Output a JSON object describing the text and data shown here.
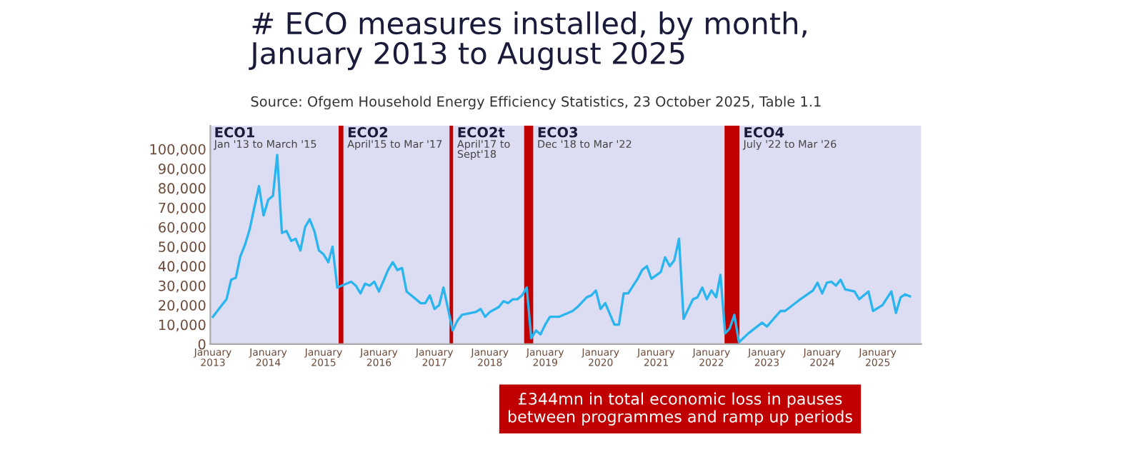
{
  "chart_data": {
    "type": "line",
    "title": "# ECO measures installed, by month,\nJanuary 2013 to August 2025",
    "subtitle": "Source: Ofgem Household Energy Efficiency Statistics, 23 October 2025, Table 1.1",
    "annotations": [
      "£344mn in total economic loss in pauses\nbetween programmes and ramp up periods"
    ],
    "series": [
      {
        "color": "#2bb5ee",
        "x": [
          "2013-01",
          "2013-03",
          "2013-04",
          "2013-05",
          "2013-06",
          "2013-07",
          "2013-08",
          "2013-09",
          "2013-10",
          "2013-11",
          "2013-12",
          "2014-01",
          "2014-02",
          "2014-03",
          "2014-04",
          "2014-05",
          "2014-06",
          "2014-07",
          "2014-08",
          "2014-09",
          "2014-10",
          "2014-11",
          "2014-12",
          "2015-01",
          "2015-02",
          "2015-03",
          "2015-04",
          "2015-05",
          "2015-07",
          "2015-08",
          "2015-09",
          "2015-10",
          "2015-11",
          "2015-12",
          "2016-01",
          "2016-03",
          "2016-04",
          "2016-05",
          "2016-06",
          "2016-07",
          "2016-09",
          "2016-10",
          "2016-11",
          "2016-12",
          "2017-01",
          "2017-02",
          "2017-03",
          "2017-05",
          "2017-06",
          "2017-07",
          "2017-10",
          "2017-11",
          "2017-12",
          "2018-01",
          "2018-03",
          "2018-04",
          "2018-05",
          "2018-06",
          "2018-07",
          "2018-08",
          "2018-09",
          "2018-10",
          "2018-11",
          "2018-12",
          "2019-01",
          "2019-02",
          "2019-04",
          "2019-07",
          "2019-08",
          "2019-10",
          "2019-11",
          "2019-12",
          "2020-01",
          "2020-02",
          "2020-04",
          "2020-05",
          "2020-06",
          "2020-07",
          "2020-09",
          "2020-10",
          "2020-11",
          "2020-12",
          "2021-02",
          "2021-03",
          "2021-04",
          "2021-05",
          "2021-06",
          "2021-07",
          "2021-09",
          "2021-10",
          "2021-11",
          "2021-12",
          "2022-01",
          "2022-02",
          "2022-03",
          "2022-04",
          "2022-05",
          "2022-06",
          "2022-07",
          "2022-09",
          "2022-12",
          "2023-01",
          "2023-04",
          "2023-05",
          "2023-08",
          "2023-11",
          "2023-12",
          "2024-01",
          "2024-02",
          "2024-03",
          "2024-04",
          "2024-05",
          "2024-06",
          "2024-08",
          "2024-09",
          "2024-11",
          "2024-12",
          "2025-02",
          "2025-04",
          "2025-05",
          "2025-06",
          "2025-07",
          "2025-08"
        ],
        "values": [
          14000,
          20000,
          23000,
          33000,
          34000,
          45000,
          51000,
          59000,
          70000,
          81000,
          66000,
          74000,
          76000,
          97000,
          57000,
          58000,
          53000,
          54000,
          48000,
          60000,
          64000,
          58000,
          48000,
          46000,
          42000,
          50000,
          29000,
          30000,
          32000,
          30000,
          26000,
          31000,
          30000,
          32000,
          27000,
          38000,
          42000,
          38000,
          39000,
          27000,
          23000,
          21000,
          21000,
          25000,
          18000,
          20000,
          29000,
          7000,
          12000,
          15000,
          16500,
          18000,
          14000,
          16500,
          19000,
          22000,
          21000,
          23000,
          23000,
          25000,
          29000,
          3000,
          7000,
          5000,
          10000,
          14000,
          14000,
          17000,
          19000,
          24000,
          25000,
          27500,
          18000,
          21000,
          10000,
          10000,
          26000,
          26000,
          33500,
          38000,
          40000,
          33500,
          37000,
          44500,
          40000,
          43000,
          54000,
          13000,
          23000,
          24000,
          29000,
          23000,
          27500,
          24000,
          35500,
          5500,
          8000,
          15000,
          1000,
          5500,
          11000,
          9000,
          17000,
          17000,
          22500,
          27500,
          31500,
          26000,
          31500,
          32000,
          30000,
          33000,
          28000,
          27000,
          23000,
          27000,
          17000,
          20000,
          27000,
          16000,
          24000,
          25500,
          24500
        ]
      }
    ],
    "bands": [
      {
        "axis": "x",
        "from": "2012-12-15",
        "to": "2015-04-10",
        "label": "ECO1\nJan '13 to March '15",
        "color": "#dcdcf2"
      },
      {
        "axis": "x",
        "from": "2015-04-10",
        "to": "2015-05-12",
        "color": "#c00000"
      },
      {
        "axis": "x",
        "from": "2015-05-12",
        "to": "2017-04-10",
        "label": "ECO2\nApril'15 to Mar '17",
        "color": "#dcdcf2"
      },
      {
        "axis": "x",
        "from": "2017-04-10",
        "to": "2017-05-05",
        "color": "#c00000"
      },
      {
        "axis": "x",
        "from": "2017-05-05",
        "to": "2018-08-15",
        "label": "ECO2t\nApril'17 to\nSept'18",
        "color": "#dcdcf2"
      },
      {
        "axis": "x",
        "from": "2018-08-15",
        "to": "2018-10-15",
        "color": "#c00000"
      },
      {
        "axis": "x",
        "from": "2018-10-15",
        "to": "2022-03-28",
        "label": "ECO3\nDec '18 to Mar '22",
        "color": "#dcdcf2"
      },
      {
        "axis": "x",
        "from": "2022-03-28",
        "to": "2022-07-05",
        "color": "#c00000"
      },
      {
        "axis": "x",
        "from": "2022-07-05",
        "to": "2025-10-15",
        "label": "ECO4\nJuly '22 to Mar '26",
        "color": "#dcdcf2"
      }
    ],
    "xlim": [
      "2012-12-15",
      "2025-10-15"
    ],
    "xticks": [
      {
        "value": "2013-01",
        "label": "January\n2013"
      },
      {
        "value": "2014-01",
        "label": "January\n2014"
      },
      {
        "value": "2015-01",
        "label": "January\n2015"
      },
      {
        "value": "2016-01",
        "label": "January\n2016"
      },
      {
        "value": "2017-01",
        "label": "January\n2017"
      },
      {
        "value": "2018-01",
        "label": "January\n2018"
      },
      {
        "value": "2019-01",
        "label": "January\n2019"
      },
      {
        "value": "2020-01",
        "label": "January\n2020"
      },
      {
        "value": "2021-01",
        "label": "January\n2021"
      },
      {
        "value": "2022-01",
        "label": "January\n2022"
      },
      {
        "value": "2023-01",
        "label": "January\n2023"
      },
      {
        "value": "2024-01",
        "label": "January\n2024"
      },
      {
        "value": "2025-01",
        "label": "January\n2025"
      }
    ],
    "ylim": [
      0,
      112000
    ],
    "yticks": [
      0,
      {
        "value": 10000,
        "label": "10,000"
      },
      {
        "value": 20000,
        "label": "20,000"
      },
      {
        "value": 30000,
        "label": "30,000"
      },
      {
        "value": 40000,
        "label": "40,000"
      },
      {
        "value": 50000,
        "label": "50,000"
      },
      {
        "value": 60000,
        "label": "60,000"
      },
      {
        "value": 70000,
        "label": "70,000"
      },
      {
        "value": 80000,
        "label": "80,000"
      },
      {
        "value": 90000,
        "label": "90,000"
      },
      {
        "value": 100000,
        "label": "100,000"
      }
    ],
    "grid": false,
    "legend": false,
    "marker": "none",
    "line_style": "solid"
  }
}
